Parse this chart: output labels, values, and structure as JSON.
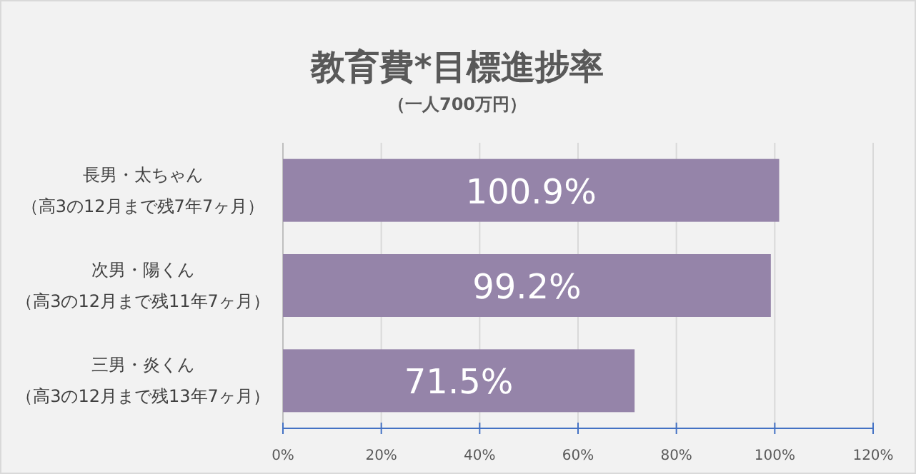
{
  "chart_data": {
    "type": "bar",
    "orientation": "horizontal",
    "title": "教育費*目標進捗率",
    "subtitle": "（一人700万円）",
    "categories": [
      "長男・太ちゃん（高3の12月まで残7年7ヶ月）",
      "次男・陽くん（高3の12月まで残11年7ヶ月）",
      "三男・炎くん（高3の12月まで残13年7ヶ月）"
    ],
    "values": [
      100.9,
      99.2,
      71.5
    ],
    "value_labels": [
      "100.9%",
      "99.2%",
      "71.5%"
    ],
    "color": "#9584a9",
    "xlim": [
      0,
      120
    ],
    "xticks": [
      {
        "value": 0,
        "label": "0%"
      },
      {
        "value": 20,
        "label": "20%"
      },
      {
        "value": 40,
        "label": "40%"
      },
      {
        "value": 60,
        "label": "60%"
      },
      {
        "value": 80,
        "label": "80%"
      },
      {
        "value": 100,
        "label": "100%"
      },
      {
        "value": 120,
        "label": "120%"
      }
    ],
    "grid": "x"
  }
}
